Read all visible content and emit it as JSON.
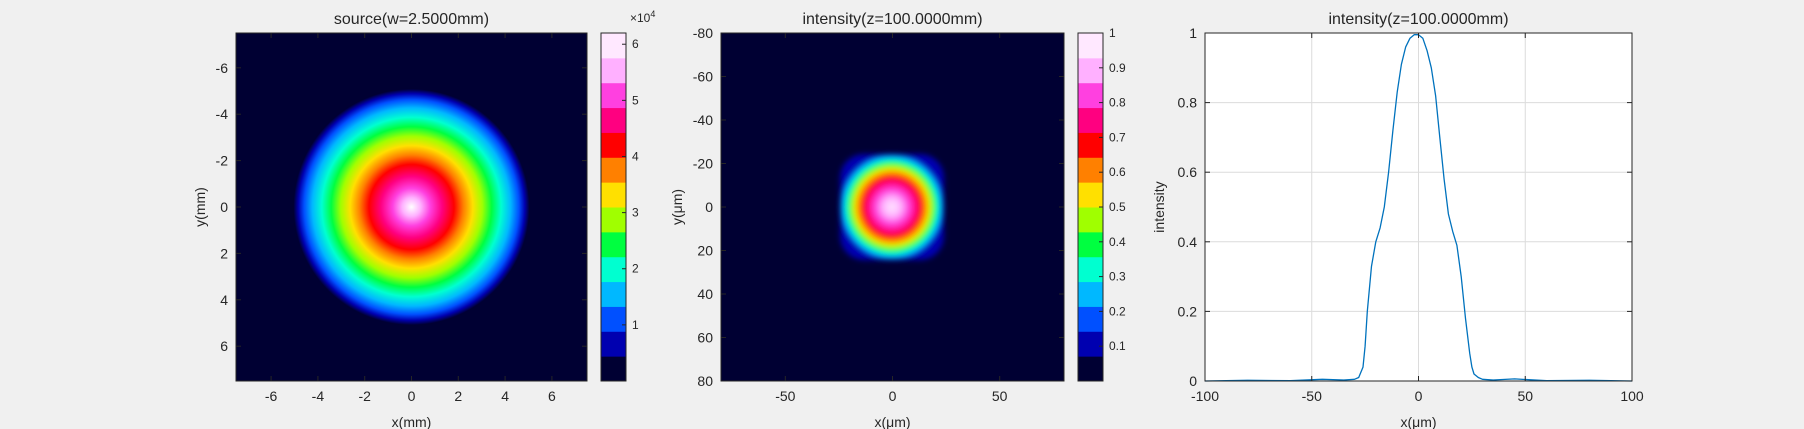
{
  "colors": {
    "background": "#f0f0f0",
    "axes_bg": "#ffffff",
    "heatmap_background": "#000033",
    "line": "#0072bd",
    "grid": "#dcdcdc"
  },
  "colormap": [
    "#000033",
    "#0000b0",
    "#0050ff",
    "#00b8ff",
    "#00ffd0",
    "#00ff40",
    "#a0ff00",
    "#ffe000",
    "#ff8000",
    "#ff0000",
    "#ff0080",
    "#ff40e0",
    "#ffb0ff",
    "#ffe8ff"
  ],
  "chart_data": [
    {
      "type": "heatmap",
      "title": "source(w=2.5000mm)",
      "xlabel": "x(mm)",
      "ylabel": "y(mm)",
      "xlim": [
        -7.5,
        7.5
      ],
      "ylim": [
        -7.5,
        7.5
      ],
      "y_reversed": true,
      "xticks": [
        -6,
        -4,
        -2,
        0,
        2,
        4,
        6
      ],
      "yticks": [
        -6,
        -4,
        -2,
        0,
        2,
        4,
        6
      ],
      "spot": {
        "shape": "circle",
        "center": [
          0,
          0
        ],
        "radius": 2.5
      },
      "colorbar": {
        "range": [
          0,
          62000
        ],
        "ticks": [
          1,
          2,
          3,
          4,
          5,
          6
        ],
        "multiplier_label": "×10",
        "multiplier_exp": "4"
      }
    },
    {
      "type": "heatmap",
      "title": "intensity(z=100.0000mm)",
      "xlabel": "x(μm)",
      "ylabel": "y(μm)",
      "xlim": [
        -80,
        80
      ],
      "ylim": [
        -80,
        80
      ],
      "y_reversed": true,
      "xticks": [
        -50,
        0,
        50
      ],
      "yticks": [
        -80,
        -60,
        -40,
        -20,
        0,
        20,
        40,
        60,
        80
      ],
      "spot": {
        "shape": "rounded-square",
        "center": [
          0,
          0
        ],
        "half_width": 24
      },
      "colorbar": {
        "range": [
          0,
          1
        ],
        "ticks": [
          0.1,
          0.2,
          0.3,
          0.4,
          0.5,
          0.6,
          0.7,
          0.8,
          0.9,
          1
        ]
      }
    },
    {
      "type": "line",
      "title": "intensity(z=100.0000mm)",
      "xlabel": "x(μm)",
      "ylabel": "intensity",
      "xlim": [
        -100,
        100
      ],
      "ylim": [
        0,
        1
      ],
      "xticks": [
        -100,
        -50,
        0,
        50,
        100
      ],
      "yticks": [
        0,
        0.2,
        0.4,
        0.6,
        0.8,
        1
      ],
      "grid": true,
      "series": [
        {
          "x": [
            -100,
            -80,
            -60,
            -45,
            -35,
            -30,
            -28,
            -26,
            -25,
            -24,
            -22,
            -20,
            -18,
            -16,
            -14,
            -12,
            -10,
            -8,
            -6,
            -4,
            -2,
            0,
            2,
            4,
            6,
            8,
            10,
            12,
            14,
            16,
            18,
            20,
            22,
            24,
            25,
            26,
            28,
            30,
            35,
            45,
            60,
            80,
            100
          ],
          "y": [
            0,
            0.002,
            0.001,
            0.005,
            0.003,
            0.005,
            0.01,
            0.04,
            0.1,
            0.2,
            0.33,
            0.4,
            0.44,
            0.5,
            0.6,
            0.72,
            0.83,
            0.91,
            0.96,
            0.985,
            0.995,
            0.995,
            0.985,
            0.95,
            0.9,
            0.82,
            0.7,
            0.58,
            0.48,
            0.43,
            0.39,
            0.3,
            0.18,
            0.08,
            0.04,
            0.02,
            0.01,
            0.005,
            0.003,
            0.006,
            0.001,
            0.002,
            0
          ]
        }
      ]
    }
  ]
}
